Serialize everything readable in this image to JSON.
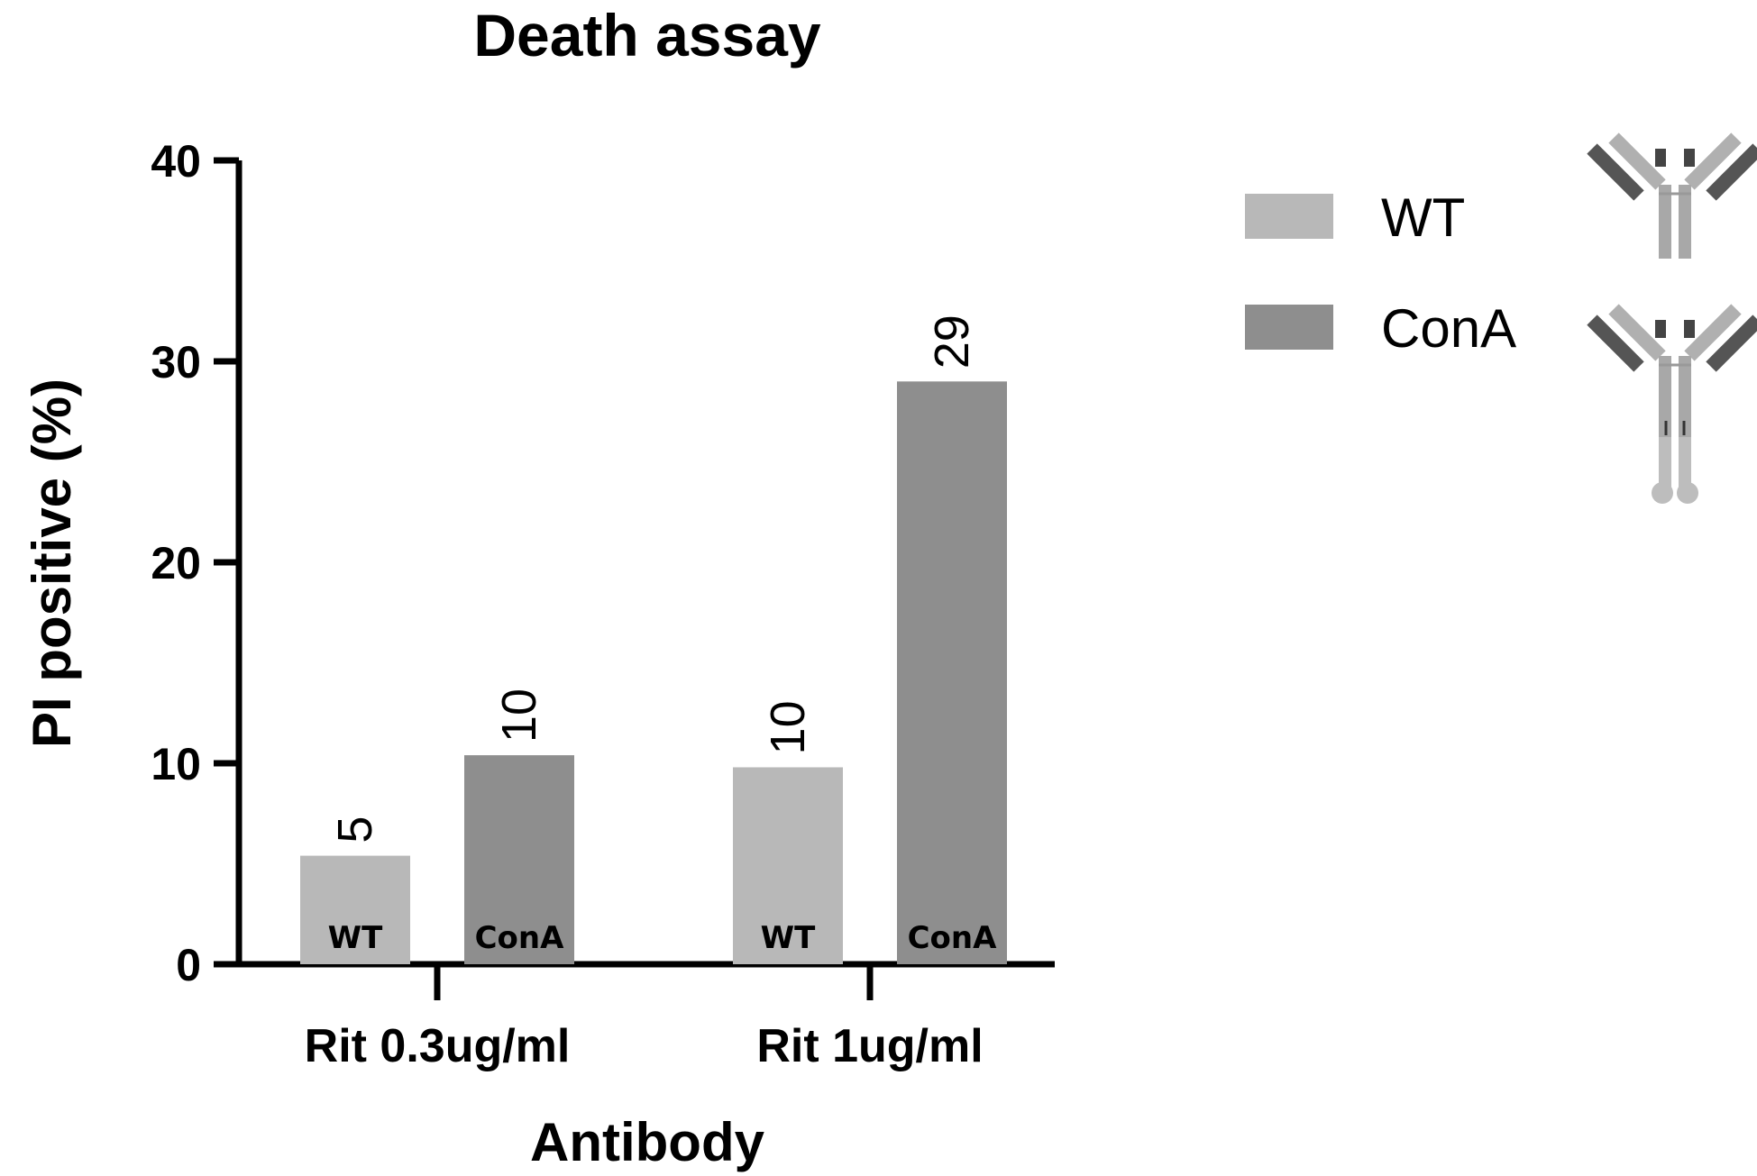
{
  "chart_data": {
    "type": "bar",
    "title": "Death assay",
    "xlabel": "Antibody",
    "ylabel": "PI positive (%)",
    "ylim": [
      0,
      40
    ],
    "yticks": [
      0,
      10,
      20,
      30,
      40
    ],
    "categories": [
      "Rit 0.3ug/ml",
      "Rit 1ug/ml"
    ],
    "series": [
      {
        "name": "WT",
        "color": "#b8b8b8",
        "values": [
          5.4,
          9.8
        ],
        "data_labels": [
          "5",
          "10"
        ],
        "bar_labels": [
          "WT",
          "WT"
        ]
      },
      {
        "name": "ConA",
        "color": "#8e8e8e",
        "values": [
          10.4,
          29
        ],
        "data_labels": [
          "10",
          "29"
        ],
        "bar_labels": [
          "ConA",
          "ConA"
        ]
      }
    ],
    "legend_position": "top-right",
    "grid": false,
    "legend_icons": [
      "antibody-wt-icon",
      "antibody-cona-icon"
    ]
  }
}
